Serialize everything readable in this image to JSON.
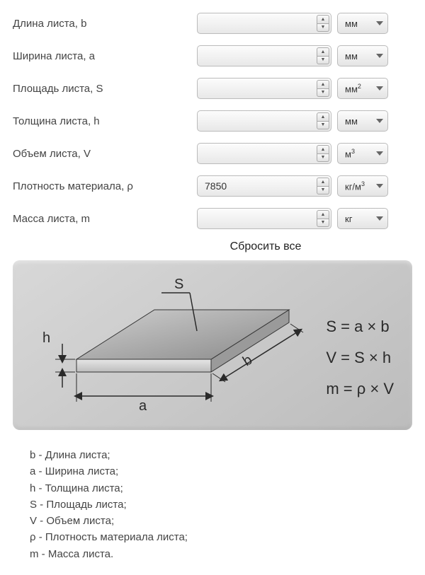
{
  "form": {
    "rows": [
      {
        "label": "Длина листа, b",
        "value": "",
        "unit_html": "мм"
      },
      {
        "label": "Ширина листа, a",
        "value": "",
        "unit_html": "мм"
      },
      {
        "label": "Площадь листа, S",
        "value": "",
        "unit_html": "мм<sup>2</sup>"
      },
      {
        "label": "Толщина листа, h",
        "value": "",
        "unit_html": "мм"
      },
      {
        "label": "Объем листа, V",
        "value": "",
        "unit_html": "м<sup>3</sup>"
      },
      {
        "label": "Плотность материала, ρ",
        "value": "7850",
        "unit_html": "кг/м<sup>3</sup>"
      },
      {
        "label": "Масса листа, m",
        "value": "",
        "unit_html": "кг"
      }
    ],
    "reset": "Сбросить все"
  },
  "diagram": {
    "background": "#c8c8c8",
    "plate_fill_top": "linear-gradient(#b9b9b9,#8f8f8f)",
    "stroke": "#2a2a2a",
    "labels": {
      "S": "S",
      "h": "h",
      "a": "a",
      "b": "b"
    },
    "formulas": [
      "S = a × b",
      "V = S × h",
      "m = ρ × V"
    ]
  },
  "legend": [
    "b - Длина листа;",
    "a - Ширина листа;",
    "h - Толщина листа;",
    "S - Площадь листа;",
    "V - Объем листа;",
    "ρ - Плотность материала листа;",
    "m - Масса листа."
  ],
  "style": {
    "label_fontsize": 15,
    "input_bg": "#efefef",
    "border_color": "#bbbbbb",
    "chevron_color": "#666666",
    "formula_fontsize": 22,
    "legend_fontsize": 15
  }
}
